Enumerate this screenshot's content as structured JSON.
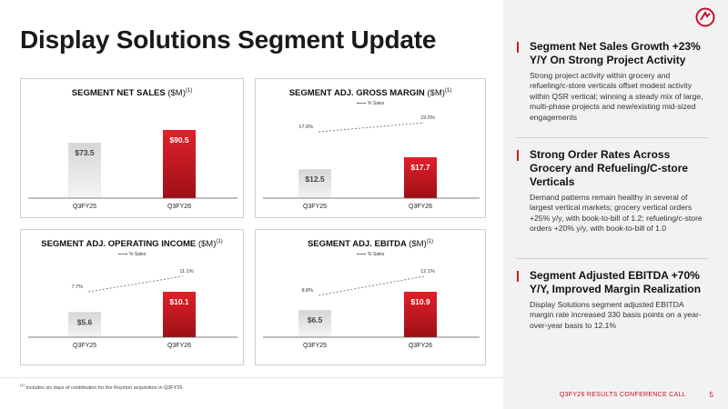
{
  "slide": {
    "title": "Display Solutions Segment Update",
    "footnote_marker": "(1)",
    "footnote": "Includes six days of contribution for the Royston acquisition in Q3FY26",
    "footer_label": "Q3FY26 RESULTS CONFERENCE CALL",
    "page_number": "5"
  },
  "colors": {
    "accent": "#c8102e",
    "bar_current": "#d0181f",
    "bar_prior": "#c4c4c4",
    "panel": "#f2f2f2"
  },
  "logo": {
    "icon": "company-logo-icon"
  },
  "chart_data": [
    {
      "type": "bar",
      "title": "SEGMENT NET SALES",
      "unit": "($M)",
      "sup": "(1)",
      "legend": "",
      "categories": [
        "Q3FY25",
        "Q3FY26"
      ],
      "values": [
        73.5,
        90.5
      ],
      "value_labels": [
        "$73.5",
        "$90.5"
      ],
      "line_series": null
    },
    {
      "type": "bar",
      "title": "SEGMENT ADJ. GROSS MARGIN",
      "unit": "($M)",
      "sup": "(1)",
      "legend": "% Sales",
      "categories": [
        "Q3FY25",
        "Q3FY26"
      ],
      "values": [
        12.5,
        17.7
      ],
      "value_labels": [
        "$12.5",
        "$17.7"
      ],
      "line_series": {
        "name": "% Sales",
        "values": [
          17.0,
          19.5
        ],
        "labels": [
          "17.0%",
          "19.5%"
        ]
      }
    },
    {
      "type": "bar",
      "title": "SEGMENT ADJ. OPERATING INCOME",
      "unit": "($M)",
      "sup": "(1)",
      "legend": "% Sales",
      "categories": [
        "Q3FY25",
        "Q3FY26"
      ],
      "values": [
        5.6,
        10.1
      ],
      "value_labels": [
        "$5.6",
        "$10.1"
      ],
      "line_series": {
        "name": "% Sales",
        "values": [
          7.7,
          11.1
        ],
        "labels": [
          "7.7%",
          "11.1%"
        ]
      }
    },
    {
      "type": "bar",
      "title": "SEGMENT ADJ. EBITDA",
      "unit": "($M)",
      "sup": "(1)",
      "legend": "% Sales",
      "categories": [
        "Q3FY25",
        "Q3FY26"
      ],
      "values": [
        6.5,
        10.9
      ],
      "value_labels": [
        "$6.5",
        "$10.9"
      ],
      "line_series": {
        "name": "% Sales",
        "values": [
          8.8,
          12.1
        ],
        "labels": [
          "8.8%",
          "12.1%"
        ]
      }
    }
  ],
  "bullets": [
    {
      "heading": "Segment Net Sales Growth +23% Y/Y On Strong Project Activity",
      "body": "Strong project activity within grocery and refueling/c-store verticals offset modest activity within QSR vertical; winning a steady mix of large, multi-phase projects and new/existing mid-sized engagements"
    },
    {
      "heading": "Strong Order Rates Across Grocery and Refueling/C-store Verticals",
      "body": "Demand patterns remain healthy in several of largest vertical markets; grocery vertical orders +25% y/y, with book-to-bill of 1.2; refueling/c-store orders +20% y/y, with book-to-bill of 1.0"
    },
    {
      "heading": "Segment Adjusted EBITDA +70% Y/Y, Improved Margin Realization",
      "body": "Display Solutions segment adjusted EBITDA margin rate increased 330 basis points on a year-over-year basis to 12.1%"
    }
  ]
}
